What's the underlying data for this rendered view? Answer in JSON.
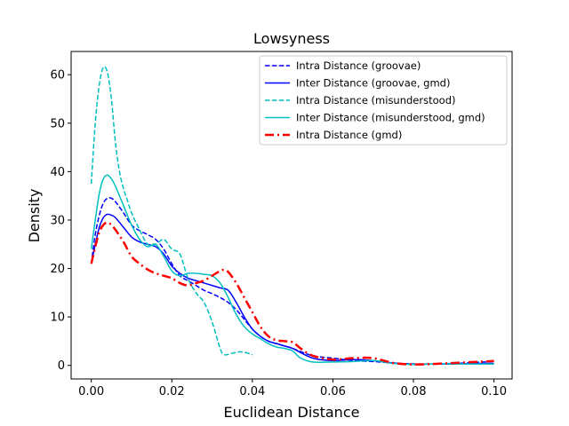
{
  "chart_data": {
    "type": "line",
    "title": "Lowsyness",
    "xlabel": "Euclidean Distance",
    "ylabel": "Density",
    "xlim": [
      -0.005,
      0.1045
    ],
    "ylim": [
      -2.8,
      64.8
    ],
    "xticks": [
      0.0,
      0.02,
      0.04,
      0.06,
      0.08,
      0.1
    ],
    "xtick_labels": [
      "0.00",
      "0.02",
      "0.04",
      "0.06",
      "0.08",
      "0.10"
    ],
    "yticks": [
      0,
      10,
      20,
      30,
      40,
      50,
      60
    ],
    "ytick_labels": [
      "0",
      "10",
      "20",
      "30",
      "40",
      "50",
      "60"
    ],
    "grid": false,
    "legend_position": "top-right",
    "series": [
      {
        "name": "Intra Distance (groovae)",
        "color": "#0000ff",
        "dash": "dashed",
        "width": 1.5,
        "x": [
          0.0,
          0.001,
          0.002,
          0.003,
          0.004,
          0.005,
          0.006,
          0.008,
          0.01,
          0.012,
          0.014,
          0.016,
          0.018,
          0.02,
          0.022,
          0.024,
          0.026,
          0.028,
          0.03,
          0.032,
          0.034,
          0.036,
          0.038,
          0.04,
          0.042,
          0.044,
          0.046,
          0.048,
          0.05,
          0.055,
          0.06,
          0.065,
          0.07,
          0.075,
          0.08,
          0.085,
          0.09,
          0.095,
          0.1
        ],
        "y": [
          21,
          27,
          31,
          33.5,
          34.5,
          34.5,
          33.8,
          31.5,
          29,
          27.8,
          27,
          26,
          24,
          21,
          18.5,
          17.5,
          16.5,
          15.5,
          14.8,
          14,
          13,
          11.5,
          9.5,
          7.5,
          6,
          5,
          4.5,
          4,
          3.5,
          2,
          1.5,
          1,
          0.8,
          0.5,
          0.3,
          0.3,
          0.4,
          0.6,
          0.8
        ]
      },
      {
        "name": "Inter Distance (groovae, gmd)",
        "color": "#0000ff",
        "dash": "solid",
        "width": 1.5,
        "x": [
          0.0,
          0.001,
          0.002,
          0.003,
          0.004,
          0.005,
          0.006,
          0.008,
          0.01,
          0.012,
          0.014,
          0.016,
          0.018,
          0.02,
          0.022,
          0.024,
          0.026,
          0.028,
          0.03,
          0.032,
          0.034,
          0.036,
          0.038,
          0.04,
          0.042,
          0.044,
          0.046,
          0.048,
          0.05,
          0.055,
          0.06,
          0.065,
          0.07,
          0.075,
          0.08,
          0.085,
          0.09,
          0.095,
          0.1
        ],
        "y": [
          21,
          25,
          28.5,
          30.5,
          31.2,
          31,
          30.5,
          28.5,
          26.5,
          25.5,
          25,
          24.5,
          23,
          20.5,
          19,
          18,
          17.5,
          17,
          16.5,
          16,
          15.5,
          13,
          10,
          7.5,
          6,
          5,
          4.5,
          4,
          3.5,
          1.5,
          1,
          1.2,
          1,
          0.5,
          0.2,
          0.3,
          0.3,
          0.4,
          0.4
        ]
      },
      {
        "name": "Intra Distance (misunderstood)",
        "color": "#00bfbf",
        "dash": "dashed",
        "width": 1.5,
        "x": [
          0.0,
          0.001,
          0.002,
          0.003,
          0.004,
          0.005,
          0.006,
          0.007,
          0.008,
          0.009,
          0.01,
          0.012,
          0.014,
          0.016,
          0.018,
          0.02,
          0.022,
          0.024,
          0.026,
          0.028,
          0.03,
          0.032,
          0.033,
          0.035,
          0.037,
          0.039,
          0.04
        ],
        "y": [
          37.5,
          50,
          58,
          61.5,
          60.5,
          55,
          46,
          40,
          36.5,
          34,
          31.5,
          28,
          25,
          25,
          26,
          24,
          23,
          18,
          15,
          13,
          9,
          3.5,
          2.2,
          2.5,
          2.8,
          2.5,
          2.2
        ]
      },
      {
        "name": "Inter Distance (misunderstood, gmd)",
        "color": "#00bfbf",
        "dash": "solid",
        "width": 1.5,
        "x": [
          0.0,
          0.001,
          0.002,
          0.003,
          0.004,
          0.005,
          0.006,
          0.008,
          0.01,
          0.012,
          0.014,
          0.016,
          0.018,
          0.02,
          0.022,
          0.024,
          0.026,
          0.028,
          0.03,
          0.032,
          0.034,
          0.036,
          0.038,
          0.04,
          0.042,
          0.044,
          0.046,
          0.048,
          0.05,
          0.052,
          0.055,
          0.06,
          0.065,
          0.07,
          0.075,
          0.08,
          0.085,
          0.09,
          0.095,
          0.1
        ],
        "y": [
          24,
          30,
          35.5,
          38.5,
          39.3,
          38.5,
          37,
          33,
          29,
          26,
          24.5,
          25,
          22.5,
          19.5,
          18.5,
          19,
          19,
          18.8,
          18.5,
          17,
          14,
          10.5,
          8,
          6.5,
          5.5,
          4.5,
          3.8,
          3.5,
          3,
          1.5,
          0.7,
          0.7,
          0.8,
          1,
          0.4,
          0.2,
          0.3,
          0.3,
          0.3,
          0.3
        ]
      },
      {
        "name": "Intra Distance (gmd)",
        "color": "#ff0000",
        "dash": "dashdot",
        "width": 2.5,
        "x": [
          0.0,
          0.001,
          0.002,
          0.003,
          0.004,
          0.005,
          0.006,
          0.008,
          0.01,
          0.012,
          0.014,
          0.016,
          0.018,
          0.02,
          0.022,
          0.024,
          0.026,
          0.028,
          0.03,
          0.032,
          0.033,
          0.034,
          0.036,
          0.038,
          0.04,
          0.042,
          0.044,
          0.046,
          0.048,
          0.05,
          0.052,
          0.055,
          0.06,
          0.065,
          0.07,
          0.075,
          0.08,
          0.085,
          0.09,
          0.095,
          0.1
        ],
        "y": [
          21,
          24.5,
          27.5,
          29,
          29.5,
          29,
          28,
          25.5,
          22.5,
          21,
          19.8,
          19,
          18.5,
          18,
          17,
          16.5,
          17,
          17.5,
          18.5,
          19.5,
          19.7,
          19.3,
          17,
          14,
          11,
          8,
          6,
          5.2,
          5,
          4.8,
          3.5,
          2,
          1.2,
          1.5,
          1.5,
          0.5,
          0.2,
          0.3,
          0.5,
          0.7,
          0.9
        ]
      }
    ]
  }
}
